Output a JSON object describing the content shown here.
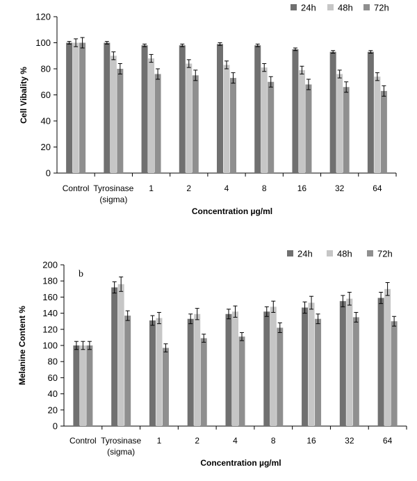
{
  "chart_data": [
    {
      "type": "bar",
      "categories": [
        "Control",
        "Tyrosinase\n(sigma)",
        "1",
        "2",
        "4",
        "8",
        "16",
        "32",
        "64"
      ],
      "series": [
        {
          "name": "24h",
          "color": "#707070",
          "values": [
            100,
            100,
            98,
            98,
            99,
            98,
            95,
            93,
            93
          ],
          "errors": [
            1,
            1,
            1,
            1,
            1,
            1,
            1,
            1,
            1
          ]
        },
        {
          "name": "48h",
          "color": "#c6c6c6",
          "values": [
            100,
            90,
            88,
            84,
            83,
            81,
            79,
            76,
            74
          ],
          "errors": [
            3,
            3,
            3,
            3,
            3,
            3,
            3,
            3,
            3
          ]
        },
        {
          "name": "72h",
          "color": "#8f8f8f",
          "values": [
            100,
            80,
            76,
            75,
            73,
            70,
            68,
            66,
            63
          ],
          "errors": [
            4,
            4,
            4,
            4,
            4,
            4,
            4,
            4,
            4
          ]
        }
      ],
      "xlabel": "Concentration µg/ml",
      "ylabel": "Cell Vibality %",
      "ylim": [
        0,
        120
      ],
      "yticks": [
        0,
        20,
        40,
        60,
        80,
        100,
        120
      ],
      "annotation": "",
      "legend": "top-right",
      "grid": false
    },
    {
      "type": "bar",
      "categories": [
        "Control",
        "Tyrosinase\n(sigma)",
        "1",
        "2",
        "4",
        "8",
        "16",
        "32",
        "64"
      ],
      "series": [
        {
          "name": "24h",
          "color": "#707070",
          "values": [
            100,
            172,
            131,
            133,
            139,
            142,
            147,
            155,
            159
          ],
          "errors": [
            5,
            7,
            6,
            6,
            6,
            6,
            7,
            7,
            7
          ]
        },
        {
          "name": "48h",
          "color": "#c6c6c6",
          "values": [
            100,
            176,
            134,
            139,
            142,
            148,
            153,
            158,
            170
          ],
          "errors": [
            5,
            9,
            7,
            7,
            7,
            7,
            8,
            8,
            8
          ]
        },
        {
          "name": "72h",
          "color": "#8f8f8f",
          "values": [
            100,
            137,
            97,
            109,
            111,
            122,
            133,
            135,
            130
          ],
          "errors": [
            5,
            6,
            5,
            5,
            5,
            6,
            6,
            6,
            6
          ]
        }
      ],
      "xlabel": "Concentration µg/ml",
      "ylabel": "Melanine Content %",
      "ylim": [
        0,
        200
      ],
      "yticks": [
        0,
        20,
        40,
        60,
        80,
        100,
        120,
        140,
        160,
        180,
        200
      ],
      "annotation": "b",
      "legend": "top-right",
      "grid": false
    }
  ]
}
